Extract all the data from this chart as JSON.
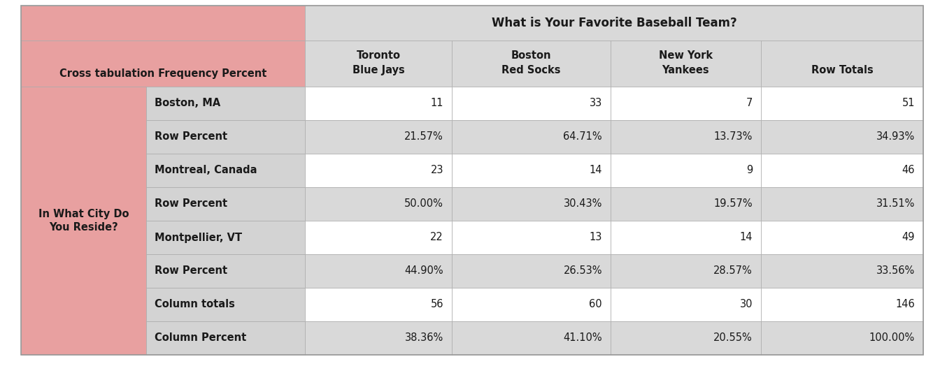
{
  "title": "What is Your Favorite Baseball Team?",
  "col_header_l1": [
    "Toronto",
    "Boston",
    "New York",
    ""
  ],
  "col_header_l2": [
    "Blue Jays",
    "Red Socks",
    "Yankees",
    "Row Totals"
  ],
  "left_label": "In What City Do\nYou Reside?",
  "left_header": "Cross tabulation Frequency Percent",
  "row_labels": [
    "Boston, MA",
    "Row Percent",
    "Montreal, Canada",
    "Row Percent",
    "Montpellier, VT",
    "Row Percent",
    "Column totals",
    "Column Percent"
  ],
  "row_data": [
    [
      "11",
      "33",
      "7",
      "51"
    ],
    [
      "21.57%",
      "64.71%",
      "13.73%",
      "34.93%"
    ],
    [
      "23",
      "14",
      "9",
      "46"
    ],
    [
      "50.00%",
      "30.43%",
      "19.57%",
      "31.51%"
    ],
    [
      "22",
      "13",
      "14",
      "49"
    ],
    [
      "44.90%",
      "26.53%",
      "28.57%",
      "33.56%"
    ],
    [
      "56",
      "60",
      "30",
      "146"
    ],
    [
      "38.36%",
      "41.10%",
      "20.55%",
      "100.00%"
    ]
  ],
  "pink": "#E8A0A0",
  "lt_gray": "#D3D3D3",
  "md_gray": "#D9D9D9",
  "white": "#FFFFFF",
  "text_dark": "#1a1a1a",
  "fs_title": 12,
  "fs_header": 10.5,
  "fs_data": 10.5
}
